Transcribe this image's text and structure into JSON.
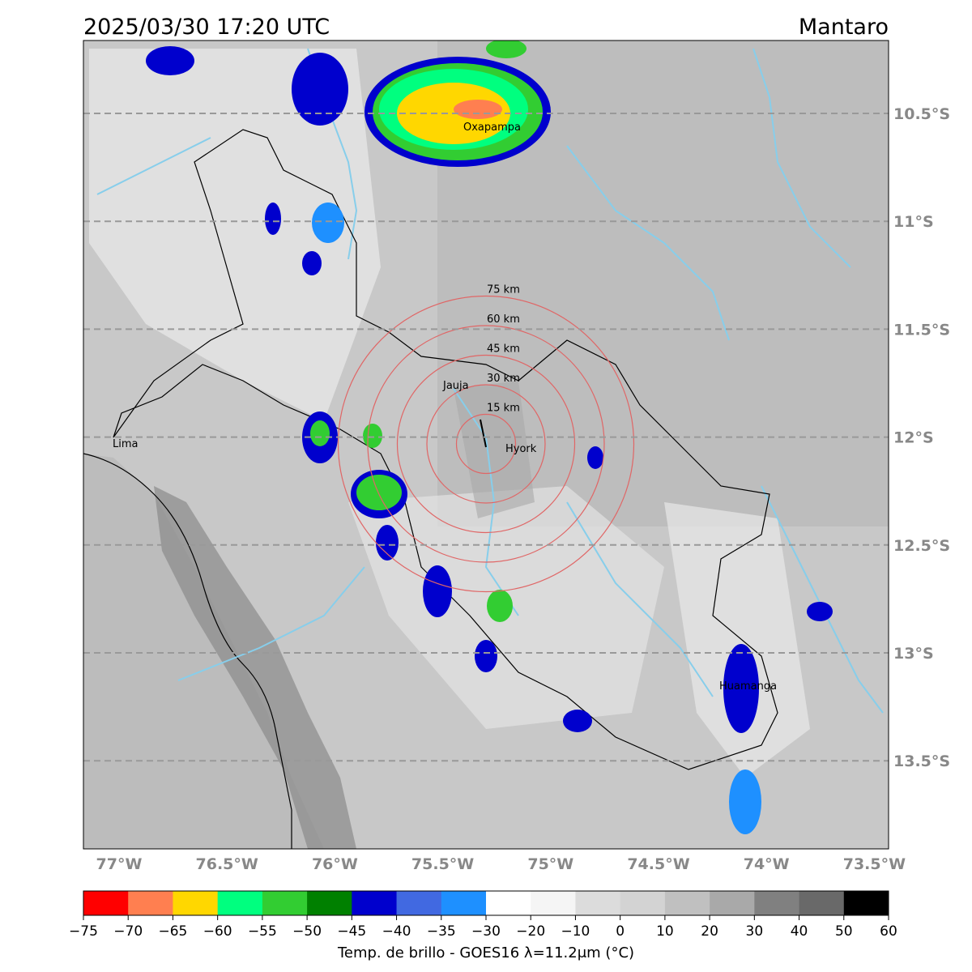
{
  "header": {
    "title": "2025/03/30 17:20 UTC",
    "region": "Mantaro"
  },
  "map": {
    "lat_labels": [
      "10.5°S",
      "11°S",
      "11.5°S",
      "12°S",
      "12.5°S",
      "13°S",
      "13.5°S"
    ],
    "lon_labels": [
      "77°W",
      "76.5°W",
      "76°W",
      "75.5°W",
      "75°W",
      "74.5°W",
      "74°W",
      "73.5°W"
    ],
    "cities": [
      "Oxapampa",
      "Jauja",
      "Lima",
      "Hyork",
      "Huamanga"
    ],
    "rings": [
      "15 km",
      "30 km",
      "45 km",
      "60 km",
      "75 km"
    ]
  },
  "colorbar": {
    "colors": [
      "#ff0000",
      "#ff7f50",
      "#ffd700",
      "#00ff7f",
      "#32cd32",
      "#008000",
      "#0000cd",
      "#4169e1",
      "#1e90ff",
      "#ffffff",
      "#f5f5f5",
      "#dcdcdc",
      "#d3d3d3",
      "#c0c0c0",
      "#a9a9a9",
      "#808080",
      "#696969",
      "#000000"
    ],
    "ticks": [
      {
        "value": -75,
        "label": "−75"
      },
      {
        "value": -70,
        "label": "−70"
      },
      {
        "value": -65,
        "label": "−65"
      },
      {
        "value": -60,
        "label": "−60"
      },
      {
        "value": -55,
        "label": "−55"
      },
      {
        "value": -50,
        "label": "−50"
      },
      {
        "value": -45,
        "label": "−45"
      },
      {
        "value": -40,
        "label": "−40"
      },
      {
        "value": -35,
        "label": "−35"
      },
      {
        "value": -30,
        "label": "−30"
      },
      {
        "value": -20,
        "label": "−20"
      },
      {
        "value": -10,
        "label": "−10"
      },
      0,
      10,
      20,
      30,
      40,
      50,
      60
    ],
    "label": "Temp. de brillo - GOES16 λ=11.2μm (°C)"
  }
}
